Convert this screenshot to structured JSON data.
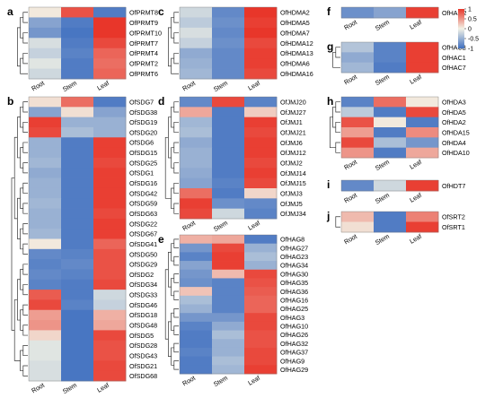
{
  "scale": {
    "ticks": [
      "1",
      "0.5",
      "0",
      "-0.5",
      "-1"
    ],
    "colors": {
      "low": "#3f6fc0",
      "mid": "#f2f2e6",
      "high": "#e8362a"
    }
  },
  "chart_data": [
    {
      "type": "heatmap",
      "panel": "a",
      "columns": [
        "Root",
        "Stem",
        "Leaf"
      ],
      "rows": [
        "OfPRMT8",
        "OfPRMT9",
        "OfPRMT10",
        "OfPRMT7",
        "OfPRMT4",
        "OfPRMT2",
        "OfPRMT6"
      ],
      "values": [
        [
          0.05,
          0.85,
          -0.9
        ],
        [
          -0.6,
          -0.9,
          1.0
        ],
        [
          -0.7,
          -0.95,
          1.0
        ],
        [
          -0.15,
          -0.9,
          0.9
        ],
        [
          -0.25,
          -0.85,
          0.75
        ],
        [
          -0.1,
          -0.9,
          0.7
        ],
        [
          -0.2,
          -0.9,
          0.75
        ]
      ]
    },
    {
      "type": "heatmap",
      "panel": "b",
      "columns": [
        "Root",
        "Stem",
        "Leaf"
      ],
      "rows": [
        "OfSDG7",
        "OfSDG38",
        "OfSDG19",
        "OfSDG20",
        "OfSDG6",
        "OfSDG15",
        "OfSDG25",
        "OfSDG1",
        "OfSDG16",
        "OfSDG42",
        "OfSDG59",
        "OfSDG63",
        "OfSDG22",
        "OfSDG67",
        "OfSDG41",
        "OfSDG50",
        "OfSDG29",
        "OfSDG2",
        "OfSDG34",
        "OfSDG33",
        "OfSDG46",
        "OfSDG18",
        "OfSDG48",
        "OfSDG5",
        "OfSDG28",
        "OfSDG43",
        "OfSDG21",
        "OfSDG68"
      ],
      "values": [
        [
          0.1,
          0.7,
          -0.9
        ],
        [
          -0.6,
          0.1,
          -0.6
        ],
        [
          0.95,
          -0.5,
          -0.5
        ],
        [
          0.9,
          -0.4,
          -0.5
        ],
        [
          -0.5,
          -0.9,
          0.95
        ],
        [
          -0.5,
          -0.9,
          0.95
        ],
        [
          -0.45,
          -0.9,
          0.9
        ],
        [
          -0.55,
          -0.9,
          0.95
        ],
        [
          -0.5,
          -0.9,
          0.95
        ],
        [
          -0.5,
          -0.9,
          0.95
        ],
        [
          -0.45,
          -0.9,
          0.95
        ],
        [
          -0.5,
          -0.9,
          0.9
        ],
        [
          -0.5,
          -0.9,
          0.95
        ],
        [
          -0.45,
          -0.9,
          0.95
        ],
        [
          0.05,
          -0.9,
          0.75
        ],
        [
          -0.8,
          -0.85,
          0.85
        ],
        [
          -0.85,
          -0.8,
          0.85
        ],
        [
          -0.8,
          -0.85,
          0.85
        ],
        [
          -0.85,
          -0.9,
          0.9
        ],
        [
          0.8,
          -0.9,
          -0.2
        ],
        [
          0.9,
          -0.85,
          -0.25
        ],
        [
          0.45,
          -0.95,
          0.35
        ],
        [
          0.5,
          -0.95,
          0.4
        ],
        [
          0.15,
          -0.95,
          0.9
        ],
        [
          -0.1,
          -0.95,
          0.85
        ],
        [
          -0.1,
          -0.95,
          0.85
        ],
        [
          -0.15,
          -0.95,
          0.9
        ],
        [
          -0.15,
          -0.95,
          0.9
        ]
      ]
    },
    {
      "type": "heatmap",
      "panel": "c",
      "columns": [
        "Root",
        "Stem",
        "Leaf"
      ],
      "rows": [
        "OfHDMA2",
        "OfHDMA5",
        "OfHDMA7",
        "OfHDMA12",
        "OfHDMA13",
        "OfHDMA6",
        "OfHDMA16"
      ],
      "values": [
        [
          -0.2,
          -0.8,
          1.0
        ],
        [
          -0.3,
          -0.75,
          0.95
        ],
        [
          -0.15,
          -0.8,
          1.0
        ],
        [
          -0.25,
          -0.75,
          0.9
        ],
        [
          -0.55,
          -0.8,
          0.95
        ],
        [
          -0.5,
          -0.8,
          0.95
        ],
        [
          -0.45,
          -0.8,
          0.9
        ]
      ]
    },
    {
      "type": "heatmap",
      "panel": "d",
      "columns": [
        "Root",
        "Stem",
        "Leaf"
      ],
      "rows": [
        "OfJMJ20",
        "OfJMJ27",
        "OfJMJ1",
        "OfJMJ21",
        "OfJMJ6",
        "OfJMJ12",
        "OfJMJ2",
        "OfJMJ14",
        "OfJMJ15",
        "OfJMJ3",
        "OfJMJ5",
        "OfJMJ34"
      ],
      "values": [
        [
          -0.8,
          0.9,
          -0.85
        ],
        [
          0.4,
          -0.9,
          0.2
        ],
        [
          -0.45,
          -0.9,
          0.95
        ],
        [
          -0.4,
          -0.9,
          0.9
        ],
        [
          -0.55,
          -0.9,
          0.95
        ],
        [
          -0.5,
          -0.9,
          0.95
        ],
        [
          -0.5,
          -0.9,
          0.9
        ],
        [
          -0.55,
          -0.9,
          0.95
        ],
        [
          -0.6,
          -0.85,
          0.9
        ],
        [
          0.7,
          -0.9,
          0.15
        ],
        [
          0.95,
          -0.75,
          -0.8
        ],
        [
          0.9,
          -0.2,
          -0.85
        ]
      ]
    },
    {
      "type": "heatmap",
      "panel": "e",
      "columns": [
        "Root",
        "Stem",
        "Leaf"
      ],
      "rows": [
        "OfHAG8",
        "OfHAG27",
        "OfHAG23",
        "OfHAG34",
        "OfHAG30",
        "OfHAG35",
        "OfHAG36",
        "OfHAG16",
        "OfHAG25",
        "OfHAG3",
        "OfHAG10",
        "OfHAG26",
        "OfHAG32",
        "OfHAG37",
        "OfHAG9",
        "OfHAG29"
      ],
      "values": [
        [
          0.35,
          0.4,
          -0.9
        ],
        [
          -0.7,
          0.9,
          -0.5
        ],
        [
          -0.85,
          0.95,
          -0.4
        ],
        [
          -0.6,
          0.95,
          -0.5
        ],
        [
          -0.7,
          0.3,
          0.9
        ],
        [
          -0.75,
          -0.85,
          0.85
        ],
        [
          0.25,
          -0.85,
          0.8
        ],
        [
          -0.4,
          -0.85,
          0.75
        ],
        [
          -0.5,
          -0.85,
          0.75
        ],
        [
          -0.7,
          -0.7,
          0.9
        ],
        [
          -0.85,
          -0.55,
          0.9
        ],
        [
          -0.9,
          -0.4,
          0.85
        ],
        [
          -0.9,
          -0.5,
          0.85
        ],
        [
          -0.85,
          -0.5,
          0.9
        ],
        [
          -0.9,
          -0.4,
          0.9
        ],
        [
          -0.9,
          -0.45,
          0.95
        ]
      ]
    },
    {
      "type": "heatmap",
      "panel": "f",
      "columns": [
        "Root",
        "Stem",
        "Leaf"
      ],
      "rows": [
        "OfHAM2"
      ],
      "values": [
        [
          -0.75,
          -0.6,
          0.95
        ]
      ]
    },
    {
      "type": "heatmap",
      "panel": "g",
      "columns": [
        "Root",
        "Stem",
        "Leaf"
      ],
      "rows": [
        "OfHAC2",
        "OfHAC1",
        "OfHAC7"
      ],
      "values": [
        [
          -0.35,
          -0.85,
          0.95
        ],
        [
          -0.55,
          -0.85,
          0.95
        ],
        [
          -0.45,
          -0.9,
          0.95
        ]
      ]
    },
    {
      "type": "heatmap",
      "panel": "h",
      "columns": [
        "Root",
        "Stem",
        "Leaf"
      ],
      "rows": [
        "OfHDA3",
        "OfHDA5",
        "OfHDA2",
        "OfHDA15",
        "OfHDA4",
        "OfHDA10"
      ],
      "values": [
        [
          -0.85,
          0.7,
          0.05
        ],
        [
          -0.3,
          -0.9,
          0.9
        ],
        [
          0.85,
          0.05,
          -0.9
        ],
        [
          0.45,
          -0.9,
          0.55
        ],
        [
          0.9,
          -0.4,
          -0.7
        ],
        [
          0.5,
          -0.9,
          0.4
        ]
      ]
    },
    {
      "type": "heatmap",
      "panel": "i",
      "columns": [
        "Root",
        "Stem",
        "Leaf"
      ],
      "rows": [
        "OfHDT7"
      ],
      "values": [
        [
          -0.8,
          -0.2,
          0.95
        ]
      ]
    },
    {
      "type": "heatmap",
      "panel": "j",
      "columns": [
        "Root",
        "Stem",
        "Leaf"
      ],
      "rows": [
        "OfSRT2",
        "OfSRT1"
      ],
      "values": [
        [
          0.3,
          -0.9,
          0.6
        ],
        [
          0.1,
          -0.9,
          0.95
        ]
      ]
    }
  ]
}
